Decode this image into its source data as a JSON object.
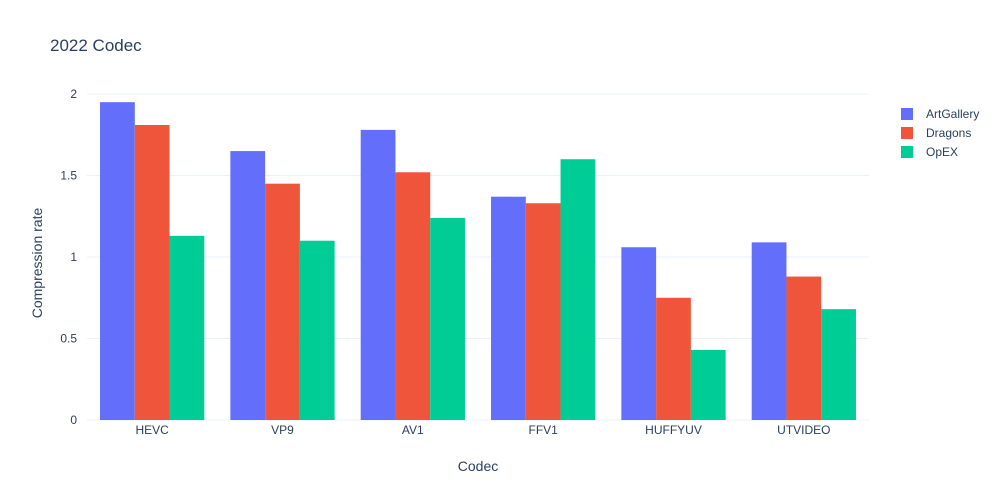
{
  "chart_data": {
    "type": "bar",
    "title": "2022 Codec",
    "xlabel": "Codec",
    "ylabel": "Compression rate",
    "categories": [
      "HEVC",
      "VP9",
      "AV1",
      "FFV1",
      "HUFFYUV",
      "UTVIDEO"
    ],
    "series": [
      {
        "name": "ArtGallery",
        "color": "#636efa",
        "values": [
          1.95,
          1.65,
          1.78,
          1.37,
          1.06,
          1.09
        ]
      },
      {
        "name": "Dragons",
        "color": "#ef553b",
        "values": [
          1.81,
          1.45,
          1.52,
          1.33,
          0.75,
          0.88
        ]
      },
      {
        "name": "OpEX",
        "color": "#00cc96",
        "values": [
          1.13,
          1.1,
          1.24,
          1.6,
          0.43,
          0.68
        ]
      }
    ],
    "yticks": [
      "0",
      "0.5",
      "1",
      "1.5",
      "2"
    ],
    "ylim": [
      0,
      2.08
    ],
    "grid": true,
    "legend_position": "top-right"
  }
}
